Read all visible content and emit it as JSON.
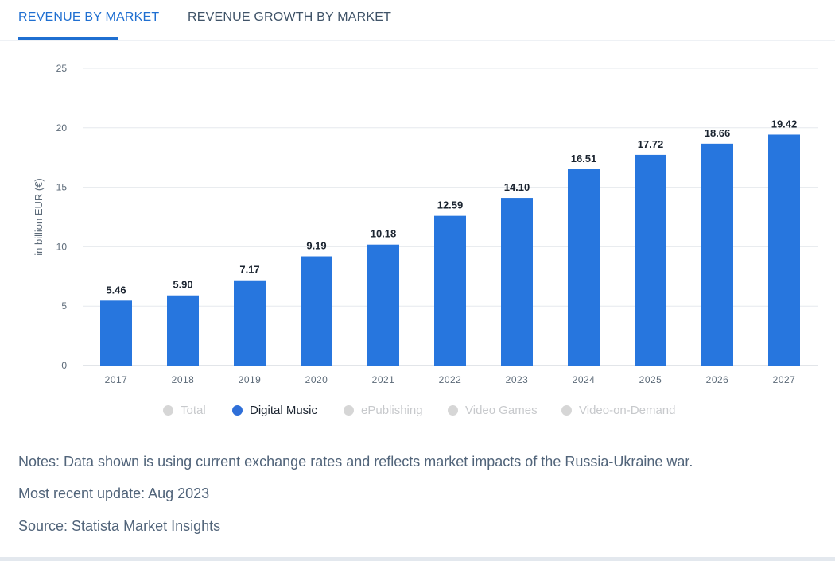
{
  "tabs": [
    {
      "label": "REVENUE BY MARKET",
      "active": true
    },
    {
      "label": "REVENUE GROWTH BY MARKET",
      "active": false
    }
  ],
  "colors": {
    "accent": "#1f6fd1",
    "bar": "#2776de",
    "legend_inactive": "#d6d6d6"
  },
  "chart_data": {
    "type": "bar",
    "categories": [
      "2017",
      "2018",
      "2019",
      "2020",
      "2021",
      "2022",
      "2023",
      "2024",
      "2025",
      "2026",
      "2027"
    ],
    "series": [
      {
        "name": "Digital Music",
        "values": [
          5.46,
          5.9,
          7.17,
          9.19,
          10.18,
          12.59,
          14.1,
          16.51,
          17.72,
          18.66,
          19.42
        ]
      }
    ],
    "value_labels": [
      "5.46",
      "5.90",
      "7.17",
      "9.19",
      "10.18",
      "12.59",
      "14.10",
      "16.51",
      "17.72",
      "18.66",
      "19.42"
    ],
    "ylabel": "in billion EUR (€)",
    "ylim": [
      0,
      25
    ],
    "yticks": [
      "0",
      "5",
      "10",
      "15",
      "20",
      "25"
    ],
    "grid": true
  },
  "legend": [
    {
      "label": "Total",
      "active": false
    },
    {
      "label": "Digital Music",
      "active": true
    },
    {
      "label": "ePublishing",
      "active": false
    },
    {
      "label": "Video Games",
      "active": false
    },
    {
      "label": "Video-on-Demand",
      "active": false
    }
  ],
  "notes": {
    "notes": "Notes: Data shown is using current exchange rates and reflects market impacts of the Russia-Ukraine war.",
    "update": "Most recent update: Aug 2023",
    "source": "Source: Statista Market Insights"
  }
}
